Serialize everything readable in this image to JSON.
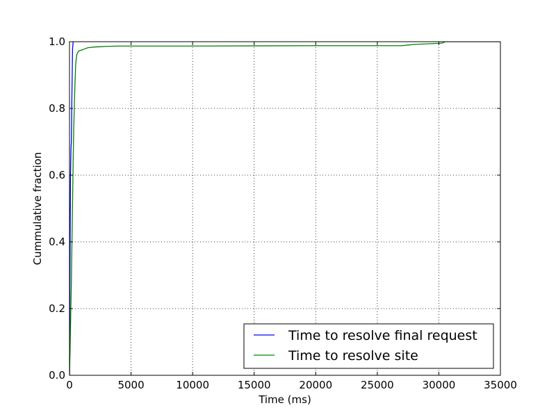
{
  "chart_data": {
    "type": "line",
    "title": "",
    "xlabel": "Time (ms)",
    "ylabel": "Cummulative fraction",
    "xlim": [
      0,
      35000
    ],
    "ylim": [
      0,
      1.0
    ],
    "x_ticks": [
      0,
      5000,
      10000,
      15000,
      20000,
      25000,
      30000,
      35000
    ],
    "x_tick_labels": [
      "0",
      "5000",
      "10000",
      "15000",
      "20000",
      "25000",
      "30000",
      "35000"
    ],
    "y_ticks": [
      0,
      0.2,
      0.4,
      0.6,
      0.8,
      1.0
    ],
    "y_tick_labels": [
      "0.0",
      "0.2",
      "0.4",
      "0.6",
      "0.8",
      "1.0"
    ],
    "grid": true,
    "legend_position": "lower-right",
    "series": [
      {
        "name": "Time to resolve final request",
        "color": "#0000ff",
        "x": [
          0,
          20,
          50,
          80,
          120,
          150,
          200,
          250,
          300
        ],
        "y": [
          0.0,
          0.15,
          0.4,
          0.6,
          0.68,
          0.7,
          0.85,
          0.98,
          1.0
        ]
      },
      {
        "name": "Time to resolve site",
        "color": "#008000",
        "x": [
          0,
          50,
          100,
          150,
          200,
          250,
          300,
          350,
          400,
          450,
          500,
          550,
          600,
          700,
          800,
          1000,
          1200,
          1500,
          2000,
          2500,
          3000,
          4000,
          6000,
          10000,
          20000,
          27000,
          27500,
          28000,
          30000,
          30300,
          30500,
          31000,
          35000
        ],
        "y": [
          0.0,
          0.08,
          0.18,
          0.27,
          0.4,
          0.52,
          0.65,
          0.75,
          0.82,
          0.88,
          0.93,
          0.95,
          0.962,
          0.97,
          0.973,
          0.975,
          0.978,
          0.982,
          0.984,
          0.985,
          0.986,
          0.987,
          0.987,
          0.987,
          0.988,
          0.988,
          0.99,
          0.992,
          0.995,
          0.996,
          1.0,
          1.0,
          1.0
        ]
      }
    ]
  }
}
